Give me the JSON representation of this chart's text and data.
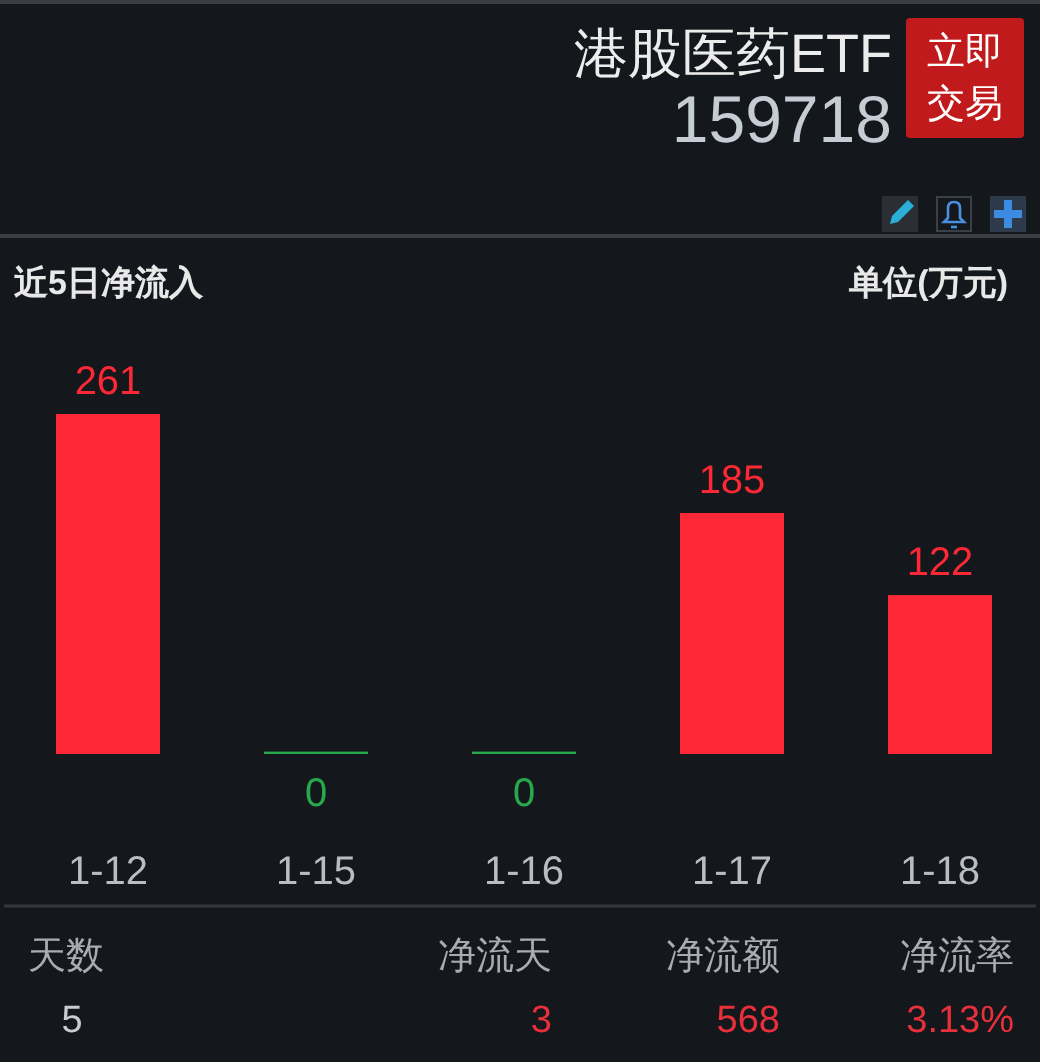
{
  "chart_data": {
    "type": "bar",
    "title": "近5日净流入",
    "categories": [
      "1-12",
      "1-15",
      "1-16",
      "1-17",
      "1-18"
    ],
    "values": [
      261,
      0,
      0,
      185,
      122
    ],
    "colors": [
      "#fc2835",
      "#27a94b",
      "#27a94b",
      "#fc2835",
      "#fc2835"
    ],
    "data_labels": true,
    "annotations": [
      "港股医药ETF",
      "159718",
      "立即交易",
      "单位(万元)",
      "天数",
      "净流天",
      "净流额",
      "净流率",
      "5",
      "3",
      "568",
      "3.13%"
    ]
  }
}
